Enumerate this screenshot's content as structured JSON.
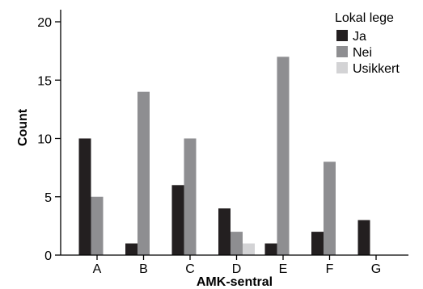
{
  "chart_data": {
    "type": "bar",
    "title": "",
    "xlabel": "AMK-sentral",
    "ylabel": "Count",
    "categories": [
      "A",
      "B",
      "C",
      "D",
      "E",
      "F",
      "G"
    ],
    "series": [
      {
        "name": "Ja",
        "values": [
          10,
          1,
          6,
          4,
          1,
          2,
          3
        ]
      },
      {
        "name": "Nei",
        "values": [
          5,
          14,
          10,
          2,
          17,
          8,
          0
        ]
      },
      {
        "name": "Usikkert",
        "values": [
          0,
          0,
          0,
          1,
          0,
          0,
          0
        ]
      }
    ],
    "ylim": [
      0,
      20
    ],
    "yticks": [
      0,
      5,
      10,
      15,
      20
    ],
    "grid": false,
    "legend": {
      "title": "Lokal lege",
      "placement": "top-right"
    },
    "colors": {
      "Ja": "#231f20",
      "Nei": "#8e8e91",
      "Usikkert": "#d3d3d5",
      "axis": "#000000"
    }
  }
}
